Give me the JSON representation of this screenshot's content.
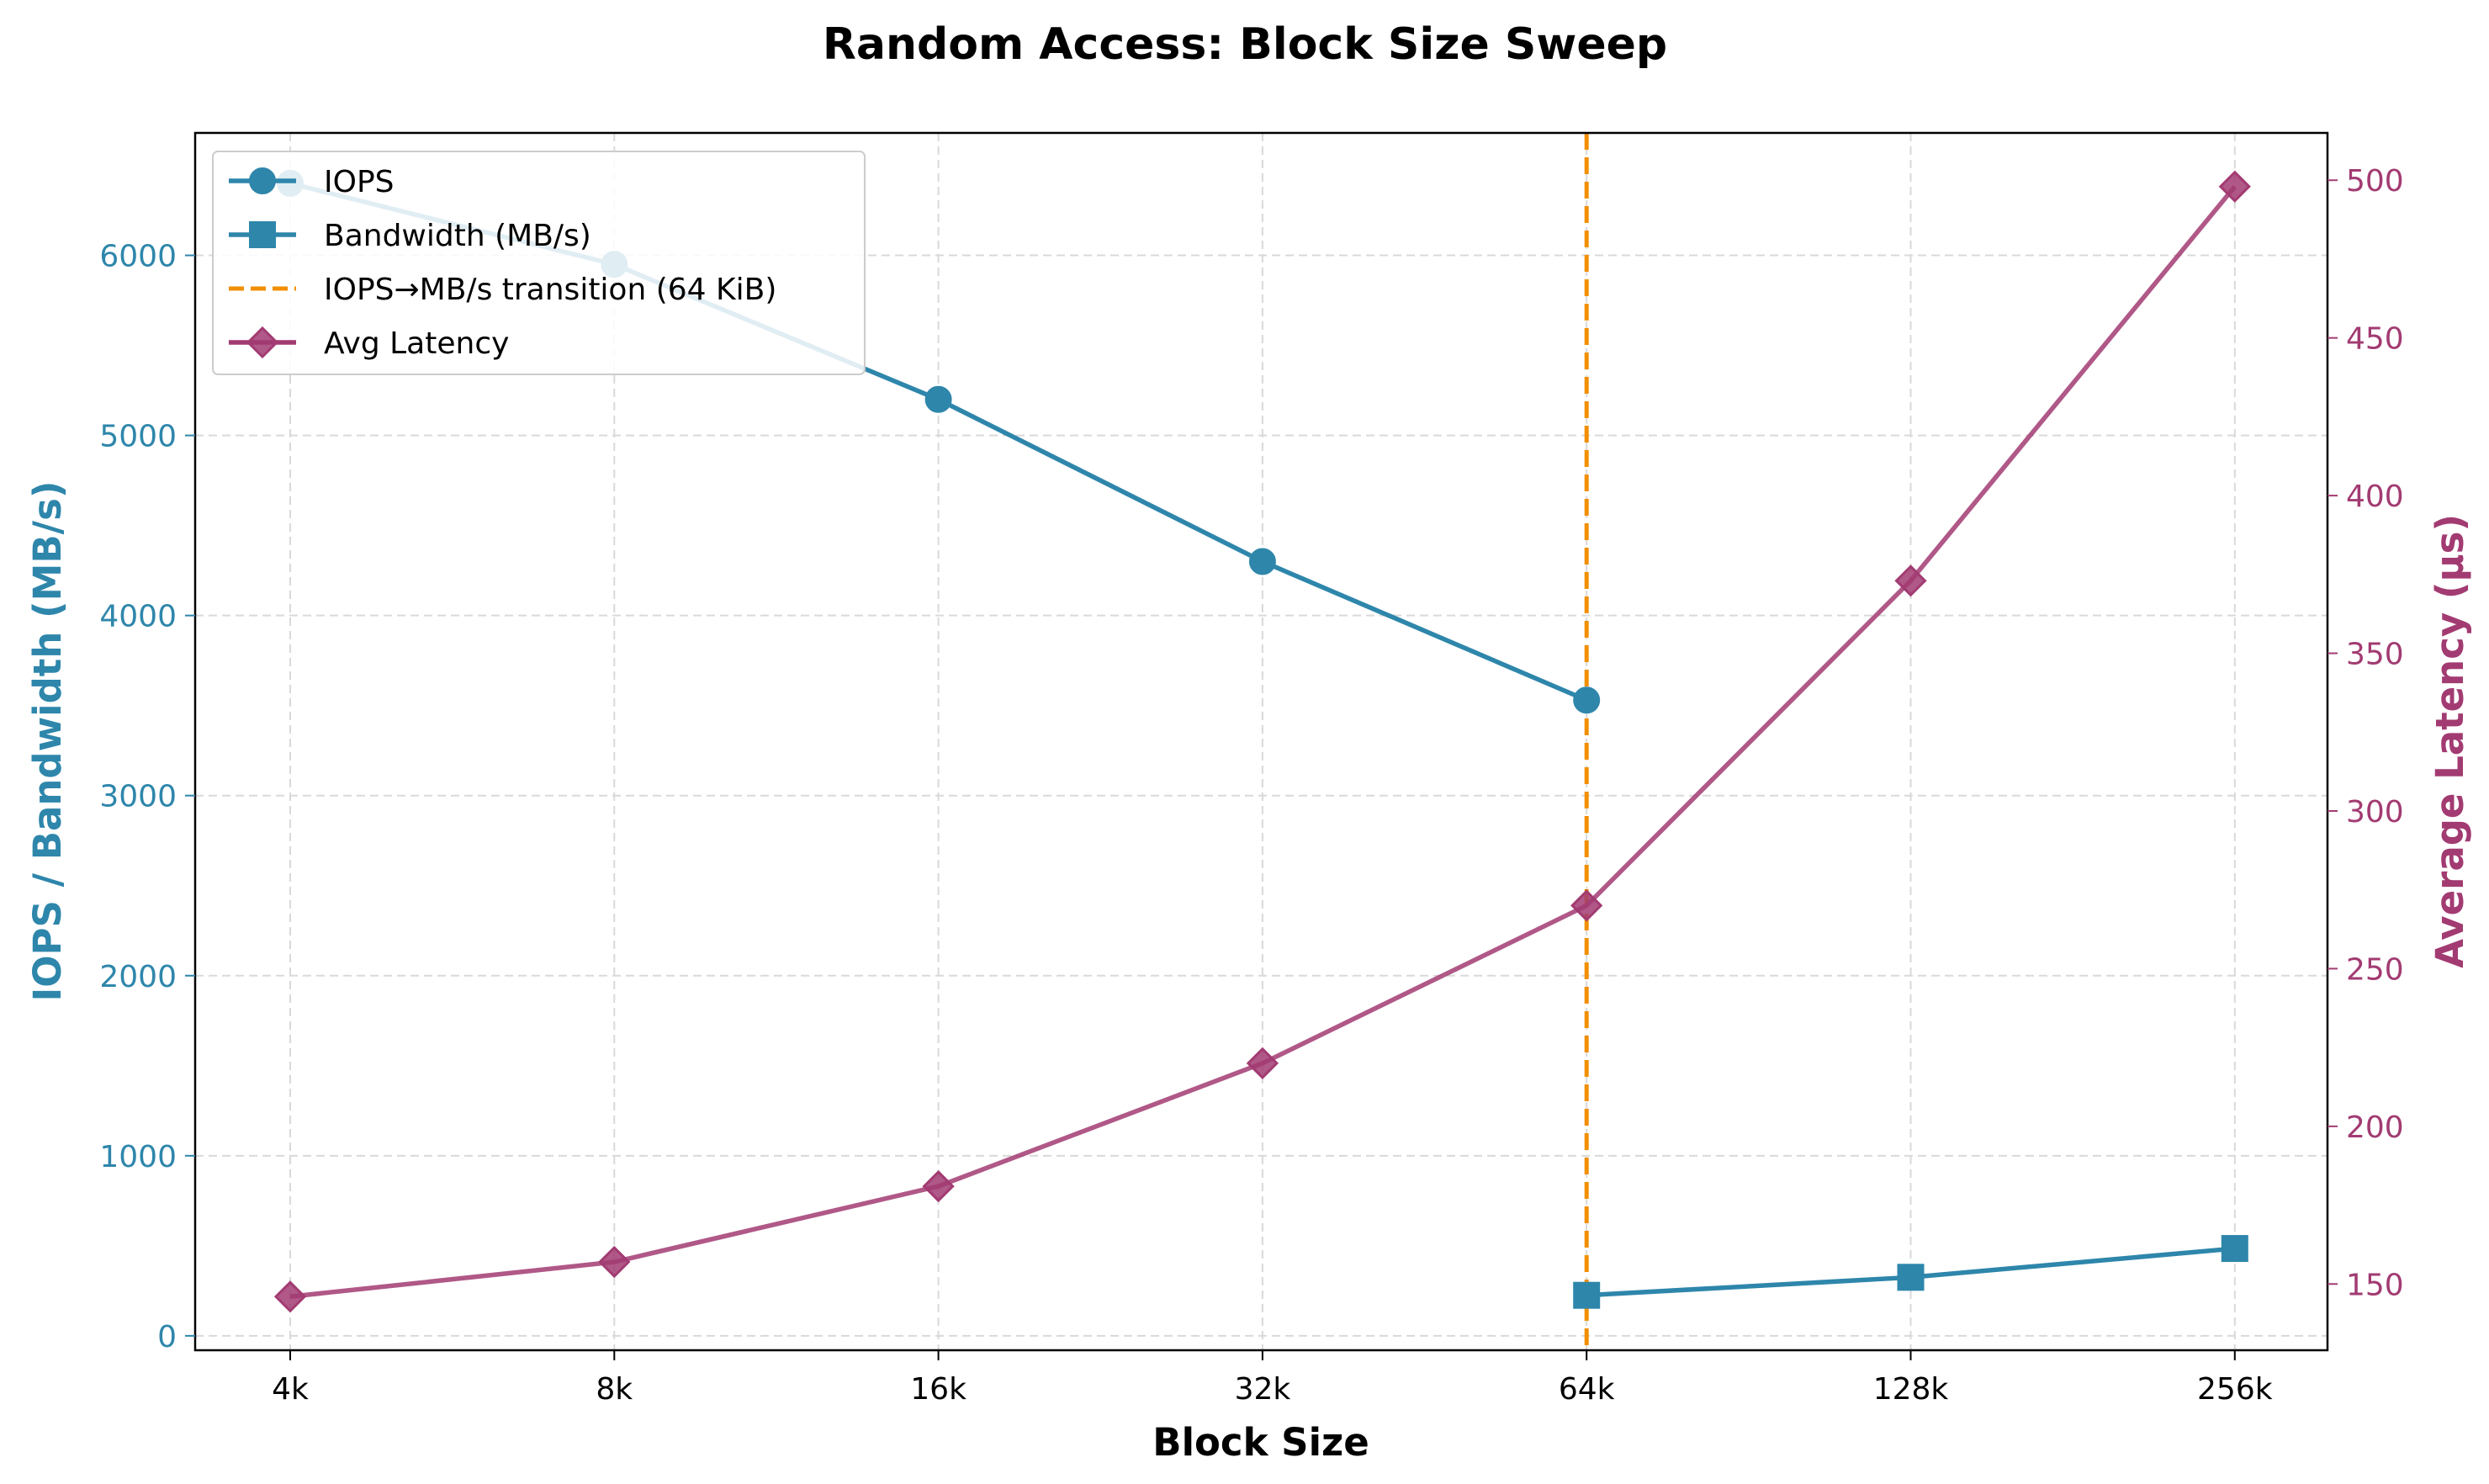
{
  "chart_data": {
    "type": "line",
    "title": "Random Access: Block Size Sweep",
    "xlabel": "Block Size",
    "ylabel_left": "IOPS / Bandwidth (MB/s)",
    "ylabel_right": "Average Latency (µs)",
    "categories": [
      "4k",
      "8k",
      "16k",
      "32k",
      "64k",
      "128k",
      "256k"
    ],
    "ylim_left": [
      -80,
      6680
    ],
    "ylim_right": [
      129,
      515
    ],
    "yticks_left": [
      0,
      1000,
      2000,
      3000,
      4000,
      5000,
      6000
    ],
    "yticks_right": [
      150,
      200,
      250,
      300,
      350,
      400,
      450,
      500
    ],
    "grid": true,
    "legend_position": "top-left",
    "series": [
      {
        "name": "IOPS",
        "axis": "left",
        "marker": "circle",
        "color": "#2e86ab",
        "values": [
          6400,
          5950,
          5200,
          4300,
          3530,
          null,
          null
        ]
      },
      {
        "name": "Bandwidth (MB/s)",
        "axis": "left",
        "marker": "square",
        "color": "#2e86ab",
        "values": [
          null,
          null,
          null,
          null,
          225,
          325,
          485
        ]
      },
      {
        "name": "Avg Latency",
        "axis": "right",
        "marker": "diamond",
        "color": "#a23b72",
        "values": [
          146,
          157,
          181,
          220,
          270,
          373,
          498
        ]
      }
    ],
    "annotations": [
      {
        "name": "IOPS→MB/s transition (64 KiB)",
        "type": "vline",
        "x": "64k",
        "color": "#f18f01",
        "style": "dashed"
      }
    ],
    "colors": {
      "left_axis": "#2e86ab",
      "right_axis": "#a23b72",
      "transition": "#f18f01"
    }
  }
}
